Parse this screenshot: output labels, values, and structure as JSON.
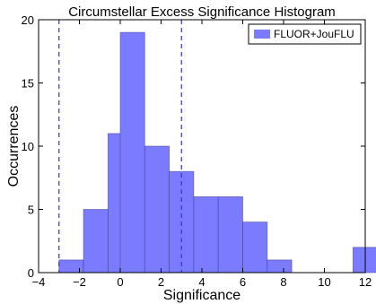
{
  "chart_data": {
    "type": "bar",
    "title": "Circumstellar Excess Significance Histogram",
    "xlabel": "Significance",
    "ylabel": "Occurrences",
    "xlim": [
      -4,
      12
    ],
    "ylim": [
      0,
      20
    ],
    "xticks": [
      "-4",
      "-2",
      "0",
      "2",
      "4",
      "6",
      "8",
      "10",
      "12"
    ],
    "yticks": [
      "0",
      "5",
      "10",
      "15",
      "20"
    ],
    "xtick_values": [
      -4,
      -2,
      0,
      2,
      4,
      6,
      8,
      10,
      12
    ],
    "ytick_values": [
      0,
      5,
      10,
      15,
      20
    ],
    "bin_width": 1.2,
    "bins": [
      {
        "start": -3.0,
        "value": 1
      },
      {
        "start": -1.8,
        "value": 5
      },
      {
        "start": -0.6,
        "value": 11
      },
      {
        "start": 0.0,
        "value": 19
      },
      {
        "start": 1.2,
        "value": 10
      },
      {
        "start": 2.4,
        "value": 8
      },
      {
        "start": 3.6,
        "value": 6
      },
      {
        "start": 4.8,
        "value": 6
      },
      {
        "start": 6.0,
        "value": 4
      },
      {
        "start": 7.2,
        "value": 1
      },
      {
        "start": 11.4,
        "value": 2
      }
    ],
    "bar_color": "#7b7bff",
    "dashed_lines": [
      -3,
      3
    ],
    "dashed_line_color": "#3333cc",
    "legend": {
      "entries": [
        {
          "name": "FLUOR+JouFLU",
          "color": "#7b7bff"
        }
      ],
      "placement": "top-right"
    },
    "grid": false
  }
}
